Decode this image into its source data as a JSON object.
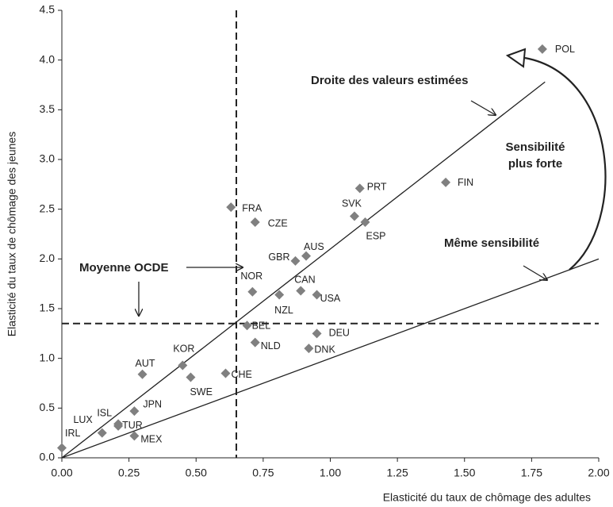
{
  "chart_data": {
    "type": "scatter",
    "xlabel": "Elasticité du taux de chômage des adultes",
    "ylabel": "Elasticité du taux de chômage des jeunes",
    "xlim": [
      0,
      2
    ],
    "ylim": [
      0,
      4.5
    ],
    "xticks": [
      {
        "value": 0,
        "label": "0.00"
      },
      {
        "value": 0.25,
        "label": "0.25"
      },
      {
        "value": 0.5,
        "label": "0.50"
      },
      {
        "value": 0.75,
        "label": "0.75"
      },
      {
        "value": 1,
        "label": "1.00"
      },
      {
        "value": 1.25,
        "label": "1.25"
      },
      {
        "value": 1.5,
        "label": "1.50"
      },
      {
        "value": 1.75,
        "label": "1.75"
      },
      {
        "value": 2,
        "label": "2.00"
      }
    ],
    "yticks": [
      {
        "value": 0,
        "label": "0.0"
      },
      0.5,
      {
        "value": 1,
        "label": "1.0"
      },
      1.5,
      {
        "value": 2,
        "label": "2.0"
      },
      2.5,
      {
        "value": 3,
        "label": "3.0"
      },
      3.5,
      {
        "value": 4,
        "label": "4.0"
      },
      4.5
    ],
    "color": "#808080",
    "points": [
      {
        "label": "IRL",
        "x": 0.0,
        "y": 0.1
      },
      {
        "label": "LUX",
        "x": 0.15,
        "y": 0.25
      },
      {
        "label": "ISL",
        "x": 0.21,
        "y": 0.34
      },
      {
        "label": "TUR",
        "x": 0.21,
        "y": 0.32
      },
      {
        "label": "JPN",
        "x": 0.27,
        "y": 0.47
      },
      {
        "label": "MEX",
        "x": 0.27,
        "y": 0.22
      },
      {
        "label": "AUT",
        "x": 0.3,
        "y": 0.84
      },
      {
        "label": "KOR",
        "x": 0.45,
        "y": 0.93
      },
      {
        "label": "SWE",
        "x": 0.48,
        "y": 0.81
      },
      {
        "label": "CHE",
        "x": 0.61,
        "y": 0.85
      },
      {
        "label": "FRA",
        "x": 0.63,
        "y": 2.52
      },
      {
        "label": "CZE",
        "x": 0.72,
        "y": 2.37
      },
      {
        "label": "BEL",
        "x": 0.69,
        "y": 1.33
      },
      {
        "label": "NOR",
        "x": 0.71,
        "y": 1.67
      },
      {
        "label": "NLD",
        "x": 0.72,
        "y": 1.16
      },
      {
        "label": "NZL",
        "x": 0.81,
        "y": 1.64
      },
      {
        "label": "GBR",
        "x": 0.87,
        "y": 1.98
      },
      {
        "label": "AUS",
        "x": 0.91,
        "y": 2.03
      },
      {
        "label": "CAN",
        "x": 0.89,
        "y": 1.68
      },
      {
        "label": "USA",
        "x": 0.95,
        "y": 1.64
      },
      {
        "label": "DEU",
        "x": 0.95,
        "y": 1.25
      },
      {
        "label": "DNK",
        "x": 0.92,
        "y": 1.1
      },
      {
        "label": "SVK",
        "x": 1.09,
        "y": 2.43
      },
      {
        "label": "ESP",
        "x": 1.13,
        "y": 2.37
      },
      {
        "label": "PRT",
        "x": 1.11,
        "y": 2.71
      },
      {
        "label": "FIN",
        "x": 1.43,
        "y": 2.77
      },
      {
        "label": "POL",
        "x": 1.79,
        "y": 4.11
      }
    ],
    "mean_x": 0.65,
    "mean_y": 1.35,
    "fit_line": {
      "x": [
        0,
        1.8
      ],
      "y": [
        0,
        3.78
      ]
    },
    "equal_line": {
      "x": [
        0,
        2
      ],
      "y": [
        0,
        2
      ]
    },
    "annotations": {
      "fit": "Droite des valeurs estimées",
      "stronger_1": "Sensibilité",
      "stronger_2": "plus forte",
      "same": "Même sensibilité",
      "mean": "Moyenne OCDE"
    }
  }
}
